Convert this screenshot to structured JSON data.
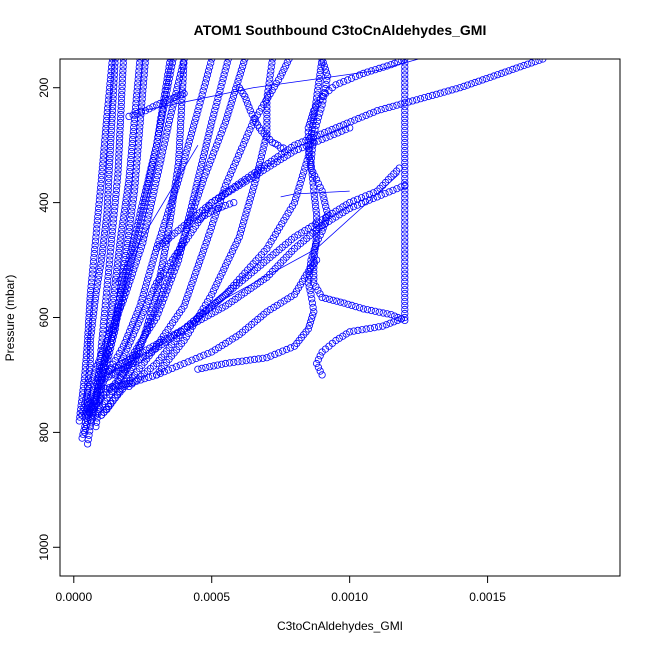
{
  "chart_data": {
    "type": "scatter",
    "title": "ATOM1 Southbound C3toCnAldehydes_GMI",
    "xlabel": "C3toCnAldehydes_GMI",
    "ylabel": "Pressure (mbar)",
    "xlim": [
      -5e-05,
      0.00198
    ],
    "ylim": [
      1050,
      150
    ],
    "y_reversed": true,
    "x_ticks": [
      0.0,
      0.0005,
      0.001,
      0.0015
    ],
    "x_tick_labels": [
      "0.0000",
      "0.0005",
      "0.0010",
      "0.0015"
    ],
    "y_ticks": [
      200,
      400,
      600,
      800,
      1000
    ],
    "y_tick_labels": [
      "200",
      "400",
      "600",
      "800",
      "1000"
    ],
    "marker": "open-circle",
    "color": "#0000ff",
    "grid": false,
    "series": [
      {
        "x": [
          3e-05,
          4e-05,
          5e-05,
          5e-05,
          6e-05,
          6e-05,
          7e-05,
          8e-05,
          0.0001,
          0.00012,
          0.00015
        ],
        "y": [
          810,
          790,
          760,
          720,
          680,
          640,
          600,
          560,
          500,
          420,
          150
        ]
      },
      {
        "x": [
          5e-05,
          6e-05,
          8e-05,
          9e-05,
          0.0001,
          0.00012,
          0.00014,
          0.00016,
          0.00018
        ],
        "y": [
          820,
          790,
          750,
          700,
          650,
          550,
          450,
          350,
          150
        ]
      },
      {
        "x": [
          8e-05,
          9e-05,
          0.0001,
          0.00011,
          0.00013,
          0.00015,
          0.00017,
          0.0002,
          0.00024
        ],
        "y": [
          790,
          760,
          720,
          680,
          620,
          540,
          460,
          360,
          150
        ]
      },
      {
        "x": [
          6e-05,
          8e-05,
          0.0001,
          0.00013,
          0.00016,
          0.0002,
          0.00024,
          0.0003,
          0.00036
        ],
        "y": [
          780,
          740,
          700,
          650,
          580,
          500,
          420,
          300,
          150
        ]
      },
      {
        "x": [
          4e-05,
          6e-05,
          9e-05,
          0.00012,
          0.00015,
          0.00018,
          0.00022,
          0.00026
        ],
        "y": [
          800,
          760,
          720,
          680,
          620,
          520,
          380,
          150
        ]
      },
      {
        "x": [
          2e-05,
          3e-05,
          4e-05,
          5e-05,
          6e-05,
          8e-05,
          0.0001,
          0.00012,
          0.00014
        ],
        "y": [
          780,
          740,
          700,
          640,
          560,
          460,
          360,
          250,
          150
        ]
      },
      {
        "x": [
          0.0001,
          0.00012,
          0.00015,
          0.0002,
          0.00025,
          0.0003,
          0.00034,
          0.00038,
          0.0004
        ],
        "y": [
          770,
          760,
          740,
          700,
          640,
          560,
          460,
          330,
          150
        ]
      },
      {
        "x": [
          3e-05,
          5e-05,
          8e-05,
          0.00012,
          0.00018,
          0.00025,
          0.0003,
          0.00035,
          0.0004
        ],
        "y": [
          770,
          730,
          690,
          640,
          570,
          470,
          360,
          250,
          150
        ]
      },
      {
        "x": [
          5e-05,
          8e-05,
          0.00012,
          0.00018,
          0.00024,
          0.0003,
          0.00038,
          0.00045,
          0.0005
        ],
        "y": [
          770,
          740,
          700,
          650,
          580,
          480,
          360,
          240,
          150
        ]
      },
      {
        "x": [
          5e-05,
          0.0001,
          0.00016,
          0.00022,
          0.0003,
          0.00038,
          0.00044,
          0.0005,
          0.00056
        ],
        "y": [
          770,
          740,
          710,
          660,
          600,
          500,
          380,
          260,
          150
        ]
      },
      {
        "x": [
          8e-05,
          0.00012,
          0.00018,
          0.00025,
          0.00032,
          0.0004,
          0.00047,
          0.00055,
          0.00062
        ],
        "y": [
          770,
          740,
          700,
          640,
          560,
          460,
          360,
          260,
          150
        ]
      },
      {
        "x": [
          0.0001,
          0.00015,
          0.00022,
          0.0003,
          0.0004,
          0.00048,
          0.00055,
          0.00065,
          0.00075,
          0.00078
        ],
        "y": [
          770,
          740,
          700,
          650,
          580,
          470,
          370,
          260,
          180,
          150
        ]
      },
      {
        "x": [
          4e-05,
          6e-05,
          9e-05,
          0.00013,
          0.00018,
          0.00024,
          0.0003,
          0.00035
        ],
        "y": [
          770,
          740,
          700,
          650,
          560,
          440,
          300,
          150
        ]
      },
      {
        "x": [
          0.0003,
          0.0004,
          0.0005,
          0.0006,
          0.00066,
          0.0007,
          0.0007,
          0.00072
        ],
        "y": [
          700,
          640,
          560,
          460,
          360,
          280,
          220,
          150
        ]
      },
      {
        "x": [
          0.0002,
          0.0003,
          0.0004,
          0.00055,
          0.0007,
          0.0008,
          0.00085,
          0.0009
        ],
        "y": [
          720,
          680,
          620,
          560,
          480,
          400,
          320,
          150
        ]
      },
      {
        "x": [
          0.00045,
          0.00055,
          0.0007,
          0.0008,
          0.00085,
          0.00087,
          0.00086,
          0.00085,
          0.00086,
          0.00088,
          0.0009,
          0.00092,
          0.0009,
          0.00086,
          0.00085,
          0.00085,
          0.00087,
          0.0009,
          0.00095,
          0.00105,
          0.00115,
          0.0012,
          0.0012,
          0.00112,
          0.001,
          0.00095,
          0.0009,
          0.00088,
          0.0009
        ],
        "y": [
          690,
          680,
          670,
          650,
          620,
          590,
          560,
          540,
          500,
          470,
          450,
          420,
          380,
          340,
          300,
          270,
          240,
          215,
          195,
          175,
          160,
          150,
          600,
          615,
          625,
          640,
          660,
          680,
          700
        ]
      },
      {
        "x": [
          0.0012,
          0.00115,
          0.00105,
          0.00098,
          0.0009,
          0.00087,
          0.00087,
          0.00088,
          0.00088,
          0.00087,
          0.00086,
          0.00087,
          0.0009,
          0.00092,
          0.0009
        ],
        "y": [
          605,
          595,
          585,
          575,
          565,
          540,
          500,
          460,
          420,
          380,
          330,
          280,
          230,
          180,
          150
        ]
      },
      {
        "x": [
          0.0001,
          0.00025,
          0.0004,
          0.00055,
          0.0007,
          0.0008,
          0.0009,
          0.001,
          0.0011,
          0.0012
        ],
        "y": [
          700,
          660,
          620,
          580,
          530,
          480,
          440,
          410,
          390,
          370
        ]
      },
      {
        "x": [
          0.0001,
          0.00025,
          0.0004,
          0.0005,
          0.0006,
          0.0007,
          0.0008,
          0.0009,
          0.001,
          0.0011,
          0.00118
        ],
        "y": [
          710,
          670,
          620,
          580,
          540,
          500,
          460,
          430,
          400,
          380,
          340
        ]
      },
      {
        "x": [
          0.0001,
          0.0002,
          0.0003,
          0.0004,
          0.0005,
          0.0006,
          0.0007,
          0.0008,
          0.00085,
          0.00088
        ],
        "y": [
          725,
          715,
          700,
          680,
          660,
          630,
          590,
          560,
          520,
          500
        ]
      },
      {
        "x": [
          0.0003,
          0.0004,
          0.0005,
          0.0006,
          0.0007,
          0.0008,
          0.0009,
          0.001
        ],
        "y": [
          480,
          440,
          400,
          370,
          340,
          310,
          290,
          270
        ]
      },
      {
        "x": [
          0.0006,
          0.00062,
          0.00064,
          0.00066,
          0.00068,
          0.0007,
          0.00072,
          0.00074,
          0.00075,
          0.00076
        ],
        "y": [
          200,
          215,
          240,
          260,
          275,
          285,
          295,
          300,
          305,
          305
        ]
      },
      {
        "x": [
          0.00045,
          0.0005,
          0.00055,
          0.00058
        ],
        "y": [
          430,
          415,
          405,
          400
        ]
      },
      {
        "x": [
          0.0002,
          0.00026,
          0.0003,
          0.00035,
          0.0004
        ],
        "y": [
          250,
          240,
          230,
          220,
          210
        ]
      },
      {
        "x": [
          0.00015,
          0.0003,
          0.0005,
          0.0008,
          0.0011,
          0.0014,
          0.0017
        ],
        "y": [
          700,
          540,
          400,
          300,
          240,
          200,
          150
        ]
      }
    ],
    "lines": [
      {
        "x": [
          0.00015,
          0.00045
        ],
        "y": [
          540,
          300
        ]
      },
      {
        "x": [
          0.00025,
          0.00065,
          0.0008,
          0.0011,
          0.00125
        ],
        "y": [
          240,
          200,
          190,
          170,
          150
        ]
      },
      {
        "x": [
          0.0005,
          0.00088,
          0.00118
        ],
        "y": [
          580,
          480,
          350
        ]
      },
      {
        "x": [
          0.00075,
          0.0008,
          0.001
        ],
        "y": [
          390,
          385,
          380
        ]
      }
    ]
  }
}
